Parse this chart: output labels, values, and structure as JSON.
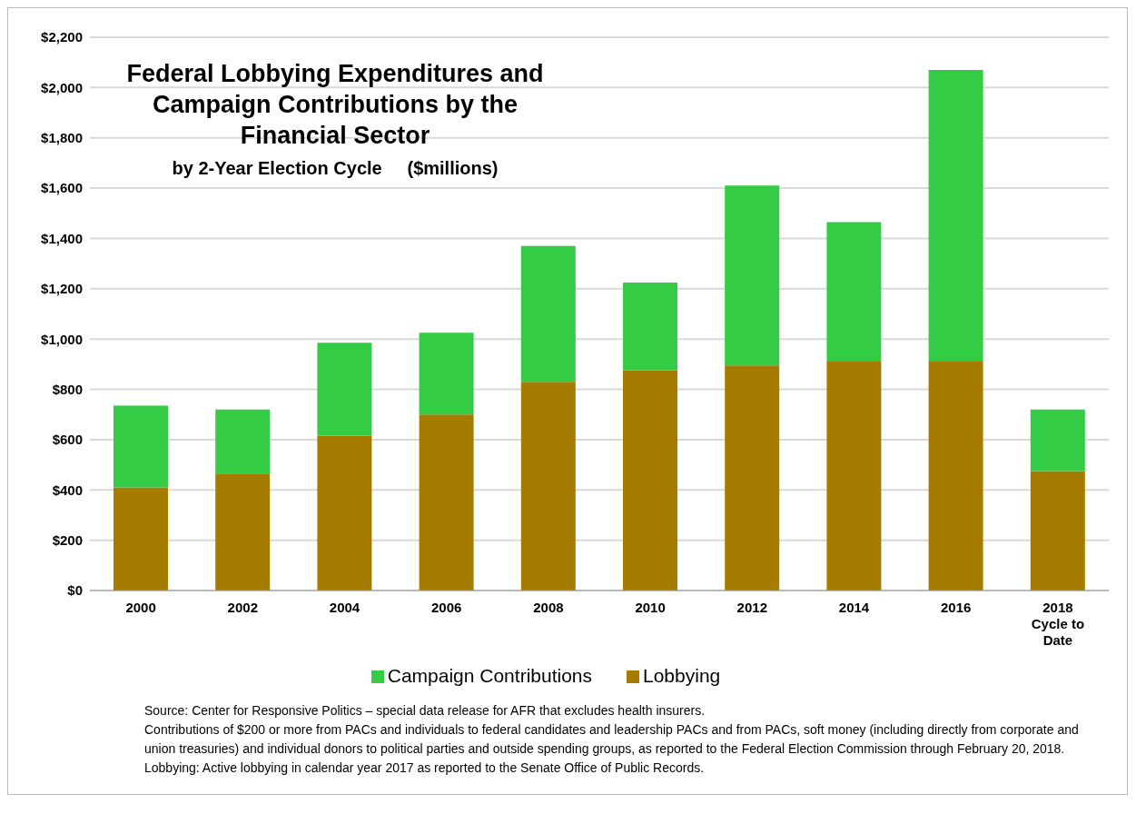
{
  "chart_data": {
    "type": "bar",
    "title": "Federal Lobbying Expenditures and Campaign Contributions by the Financial Sector",
    "subtitle": "by 2-Year Election Cycle     ($millions)",
    "categories": [
      "2000",
      "2002",
      "2004",
      "2006",
      "2008",
      "2010",
      "2012",
      "2014",
      "2016",
      "2018 Cycle to Date"
    ],
    "stacked": true,
    "series": [
      {
        "name": "Lobbying",
        "color": "#a67c00",
        "values": [
          410,
          465,
          615,
          700,
          830,
          875,
          895,
          910,
          910,
          475
        ]
      },
      {
        "name": "Campaign Contributions",
        "color": "#33cc44",
        "values": [
          325,
          255,
          370,
          325,
          540,
          350,
          715,
          555,
          1160,
          245
        ]
      }
    ],
    "ylim": [
      0,
      2200
    ],
    "yticks": [
      {
        "value": 0,
        "label": "$0"
      },
      {
        "value": 200,
        "label": "$200"
      },
      {
        "value": 400,
        "label": "$400"
      },
      {
        "value": 600,
        "label": "$600"
      },
      {
        "value": 800,
        "label": "$800"
      },
      {
        "value": 1000,
        "label": "$1,000"
      },
      {
        "value": 1200,
        "label": "$1,200"
      },
      {
        "value": 1400,
        "label": "$1,400"
      },
      {
        "value": 1600,
        "label": "$1,600"
      },
      {
        "value": 1800,
        "label": "$1,800"
      },
      {
        "value": 2000,
        "label": "$2,000"
      },
      {
        "value": 2200,
        "label": "$2,200"
      }
    ],
    "grid": "y",
    "legend": "bottom",
    "annotations": [
      "Source: Center for Responsive Politics – special data release for AFR that excludes health insurers.",
      "Contributions of $200 or more from PACs and individuals to federal candidates and leadership PACs and from PACs, soft money (including directly from corporate and union treasuries) and individual donors to political parties and outside spending groups, as reported to the Federal Election Commission through February 20, 2018.",
      "Lobbying: Active lobbying in calendar year 2017 as reported to the Senate Office of Public Records."
    ]
  }
}
